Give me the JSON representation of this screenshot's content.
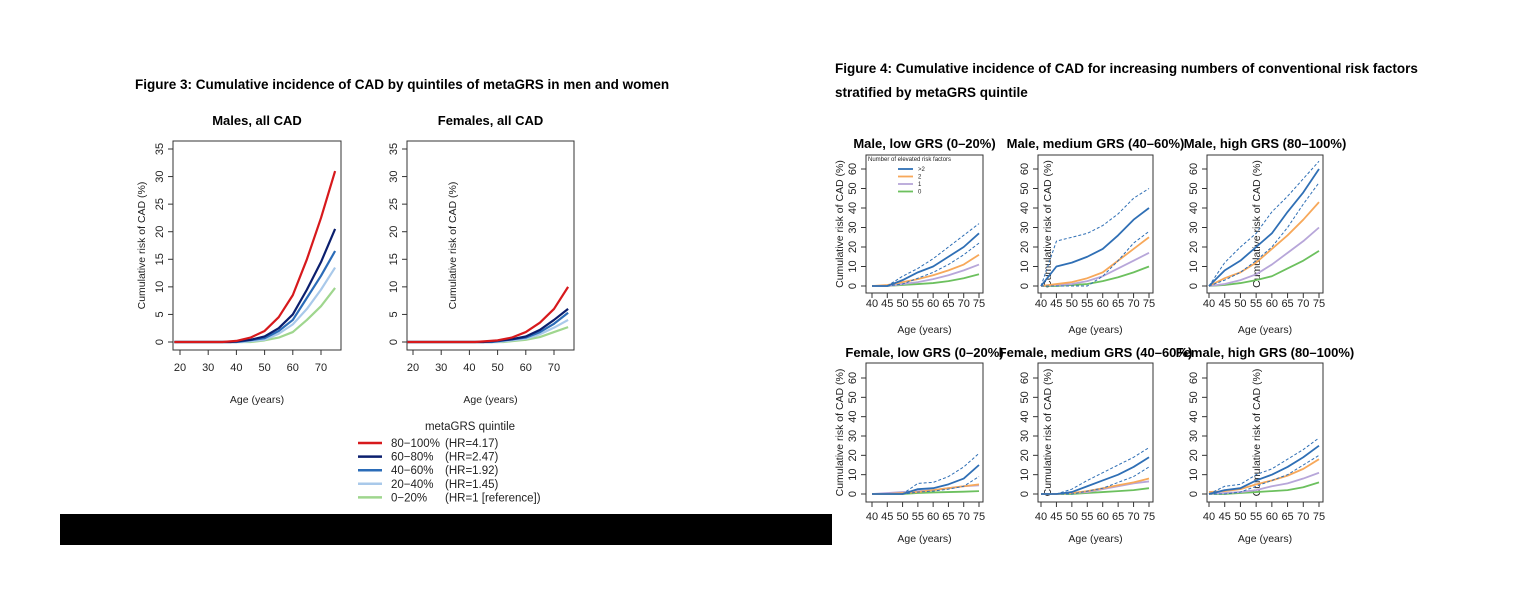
{
  "figure3": {
    "title": "Figure 3: Cumulative incidence of CAD by quintiles of metaGRS in men and women",
    "legend_title": "metaGRS quintile",
    "legend": [
      {
        "range": "80−100%",
        "hr": "(HR=4.17)",
        "color": "#d7191c"
      },
      {
        "range": "60−80%",
        "hr": "(HR=2.47)",
        "color": "#0b1f6e"
      },
      {
        "range": "40−60%",
        "hr": "(HR=1.92)",
        "color": "#2b6cb8"
      },
      {
        "range": "20−40%",
        "hr": "(HR=1.45)",
        "color": "#a9c9ea"
      },
      {
        "range": "0−20%",
        "hr": "(HR=1 [reference])",
        "color": "#9fd68e"
      }
    ]
  },
  "figure4": {
    "title_line1": "Figure 4: Cumulative incidence of CAD for increasing numbers of conventional risk factors",
    "title_line2": "stratified by metaGRS quintile",
    "legend_title": "Number of elevated risk factors",
    "legend": [
      {
        "label": ">2",
        "color": "#2f6fb5"
      },
      {
        "label": "2",
        "color": "#f7a85a"
      },
      {
        "label": "1",
        "color": "#b7a6d9"
      },
      {
        "label": "0",
        "color": "#6cc05e"
      }
    ]
  },
  "chart_data": [
    {
      "type": "line",
      "title": "Males, all CAD",
      "xlabel": "Age (years)",
      "ylabel": "Cumulative risk of CAD (%)",
      "xlim": [
        18,
        75
      ],
      "ylim": [
        0,
        35
      ],
      "xticks": [
        "20",
        "30",
        "40",
        "50",
        "60",
        "70"
      ],
      "yticks": [
        "0",
        "5",
        "10",
        "15",
        "20",
        "25",
        "30",
        "35"
      ],
      "series": [
        {
          "name": "80−100%",
          "x": [
            18,
            35,
            40,
            45,
            50,
            55,
            60,
            65,
            70,
            75
          ],
          "y": [
            0,
            0,
            0.2,
            0.8,
            2,
            4.5,
            8.5,
            15,
            22.5,
            31
          ]
        },
        {
          "name": "60−80%",
          "x": [
            18,
            38,
            45,
            50,
            55,
            60,
            65,
            70,
            75
          ],
          "y": [
            0,
            0,
            0.4,
            1,
            2.5,
            5,
            9.5,
            14.5,
            20.5
          ]
        },
        {
          "name": "40−60%",
          "x": [
            18,
            40,
            50,
            55,
            60,
            65,
            70,
            75
          ],
          "y": [
            0,
            0,
            0.7,
            2,
            4,
            8,
            12,
            16.5
          ]
        },
        {
          "name": "20−40%",
          "x": [
            18,
            42,
            50,
            55,
            60,
            65,
            70,
            75
          ],
          "y": [
            0,
            0,
            0.4,
            1.5,
            3.2,
            6,
            9.5,
            13.5
          ]
        },
        {
          "name": "0−20%",
          "x": [
            18,
            45,
            50,
            55,
            60,
            65,
            70,
            75
          ],
          "y": [
            0,
            0,
            0.3,
            0.8,
            1.8,
            4,
            6.5,
            9.8
          ]
        }
      ]
    },
    {
      "type": "line",
      "title": "Females, all CAD",
      "xlabel": "Age (years)",
      "ylabel": "Cumulative risk of CAD (%)",
      "xlim": [
        18,
        75
      ],
      "ylim": [
        0,
        35
      ],
      "xticks": [
        "20",
        "30",
        "40",
        "50",
        "60",
        "70"
      ],
      "yticks": [
        "0",
        "5",
        "10",
        "15",
        "20",
        "25",
        "30",
        "35"
      ],
      "series": [
        {
          "name": "80−100%",
          "x": [
            18,
            42,
            50,
            55,
            60,
            65,
            70,
            75
          ],
          "y": [
            0,
            0,
            0.3,
            0.8,
            1.8,
            3.5,
            6,
            10
          ]
        },
        {
          "name": "60−80%",
          "x": [
            18,
            45,
            55,
            60,
            65,
            70,
            75
          ],
          "y": [
            0,
            0,
            0.5,
            1,
            2.2,
            4,
            6
          ]
        },
        {
          "name": "40−60%",
          "x": [
            18,
            48,
            60,
            65,
            70,
            75
          ],
          "y": [
            0,
            0,
            0.8,
            1.8,
            3.3,
            5.3
          ]
        },
        {
          "name": "20−40%",
          "x": [
            18,
            50,
            60,
            65,
            70,
            75
          ],
          "y": [
            0,
            0,
            0.6,
            1.4,
            2.6,
            4
          ]
        },
        {
          "name": "0−20%",
          "x": [
            18,
            52,
            60,
            65,
            70,
            75
          ],
          "y": [
            0,
            0,
            0.4,
            0.9,
            1.8,
            2.7
          ]
        }
      ]
    },
    {
      "type": "line",
      "title": "Male, low GRS (0–20%)",
      "xlabel": "Age (years)",
      "ylabel": "Cumulative risk of CAD (%)",
      "xlim": [
        40,
        75
      ],
      "ylim": [
        0,
        60
      ],
      "x": [
        40,
        45,
        50,
        55,
        60,
        65,
        70,
        75
      ],
      "xticks": [
        "40",
        "45",
        "50",
        "55",
        "60",
        "65",
        "70",
        "75"
      ],
      "yticks": [
        "0",
        "10",
        "20",
        "30",
        "40",
        "50",
        "60"
      ],
      "series": [
        {
          "name": ">2",
          "y": [
            0,
            0,
            3,
            7,
            10,
            15,
            20,
            27
          ],
          "ci_lower": [
            0,
            0,
            1,
            4,
            7,
            11,
            16,
            22
          ],
          "ci_upper": [
            0,
            0,
            5,
            9,
            14,
            20,
            26,
            32
          ]
        },
        {
          "name": "2",
          "y": [
            0,
            0.5,
            2,
            3.5,
            5.5,
            8,
            11,
            16
          ]
        },
        {
          "name": "1",
          "y": [
            0,
            0,
            1,
            2,
            3.5,
            5.5,
            8,
            11
          ]
        },
        {
          "name": "0",
          "y": [
            0,
            0,
            0.5,
            1,
            1.5,
            2.5,
            4,
            6
          ]
        }
      ]
    },
    {
      "type": "line",
      "title": "Male, medium GRS (40–60%)",
      "xlabel": "Age (years)",
      "ylabel": "Cumulative risk of CAD (%)",
      "xlim": [
        40,
        75
      ],
      "ylim": [
        0,
        60
      ],
      "x": [
        40,
        45,
        50,
        55,
        60,
        65,
        70,
        75
      ],
      "xticks": [
        "40",
        "45",
        "50",
        "55",
        "60",
        "65",
        "70",
        "75"
      ],
      "yticks": [
        "0",
        "10",
        "20",
        "30",
        "40",
        "50",
        "60"
      ],
      "series": [
        {
          "name": ">2",
          "y": [
            0,
            10,
            12,
            15,
            19,
            26,
            34,
            40
          ],
          "ci_lower": [
            0,
            0,
            0,
            0,
            5,
            13,
            22,
            28
          ],
          "ci_upper": [
            0,
            23,
            25,
            27,
            31,
            37,
            45,
            50
          ]
        },
        {
          "name": "2",
          "y": [
            0,
            1,
            2,
            4,
            7,
            13,
            19,
            25
          ]
        },
        {
          "name": "1",
          "y": [
            0,
            0.5,
            1,
            2.5,
            5,
            9,
            13,
            17
          ]
        },
        {
          "name": "0",
          "y": [
            0,
            0,
            0.5,
            1,
            2.5,
            4.5,
            7,
            10
          ]
        }
      ]
    },
    {
      "type": "line",
      "title": "Male, high GRS (80–100%)",
      "xlabel": "Age (years)",
      "ylabel": "Cumulative risk of CAD (%)",
      "xlim": [
        40,
        75
      ],
      "ylim": [
        0,
        60
      ],
      "x": [
        40,
        45,
        50,
        55,
        60,
        65,
        70,
        75
      ],
      "xticks": [
        "40",
        "45",
        "50",
        "55",
        "60",
        "65",
        "70",
        "75"
      ],
      "yticks": [
        "0",
        "10",
        "20",
        "30",
        "40",
        "50",
        "60"
      ],
      "series": [
        {
          "name": ">2",
          "y": [
            0,
            8,
            13,
            20,
            27,
            38,
            48,
            60
          ],
          "ci_lower": [
            0,
            3,
            7,
            13,
            20,
            30,
            42,
            53
          ],
          "ci_upper": [
            0,
            12,
            20,
            27,
            38,
            46,
            55,
            64
          ]
        },
        {
          "name": "2",
          "y": [
            0,
            4,
            7,
            12,
            19,
            26,
            34,
            43
          ]
        },
        {
          "name": "1",
          "y": [
            0,
            1,
            3,
            6,
            11,
            17,
            23,
            30
          ]
        },
        {
          "name": "0",
          "y": [
            0,
            0.5,
            1.5,
            3,
            5,
            9,
            13,
            18
          ]
        }
      ]
    },
    {
      "type": "line",
      "title": "Female, low GRS (0–20%)",
      "xlabel": "Age (years)",
      "ylabel": "Cumulative risk of CAD (%)",
      "xlim": [
        40,
        75
      ],
      "ylim": [
        0,
        60
      ],
      "x": [
        40,
        45,
        50,
        55,
        60,
        65,
        70,
        75
      ],
      "xticks": [
        "40",
        "45",
        "50",
        "55",
        "60",
        "65",
        "70",
        "75"
      ],
      "yticks": [
        "0",
        "10",
        "20",
        "30",
        "40",
        "50",
        "60"
      ],
      "series": [
        {
          "name": ">2",
          "y": [
            0,
            0,
            0,
            2.5,
            3,
            5,
            8,
            15
          ],
          "ci_lower": [
            0,
            0,
            0,
            1,
            1.5,
            2.5,
            4,
            9
          ],
          "ci_upper": [
            0,
            0,
            0,
            5.5,
            6,
            9,
            14,
            21
          ]
        },
        {
          "name": "2",
          "y": [
            0,
            0,
            0.5,
            1,
            2,
            3,
            4,
            5
          ]
        },
        {
          "name": "1",
          "y": [
            0,
            0.5,
            1,
            1.5,
            2,
            3,
            4,
            4.5
          ]
        },
        {
          "name": "0",
          "y": [
            0,
            0,
            0,
            0.5,
            0.8,
            1,
            1.2,
            1.5
          ]
        }
      ]
    },
    {
      "type": "line",
      "title": "Female, medium GRS (40–60%)",
      "xlabel": "Age (years)",
      "ylabel": "Cumulative risk of CAD (%)",
      "xlim": [
        40,
        75
      ],
      "ylim": [
        0,
        60
      ],
      "x": [
        40,
        45,
        50,
        55,
        60,
        65,
        70,
        75
      ],
      "xticks": [
        "40",
        "45",
        "50",
        "55",
        "60",
        "65",
        "70",
        "75"
      ],
      "yticks": [
        "0",
        "10",
        "20",
        "30",
        "40",
        "50",
        "60"
      ],
      "series": [
        {
          "name": ">2",
          "y": [
            0,
            0,
            1,
            4,
            7,
            10,
            14,
            19
          ],
          "ci_lower": [
            0,
            0,
            0,
            1.5,
            3,
            6,
            9,
            14
          ],
          "ci_upper": [
            0,
            0,
            2.5,
            7,
            11,
            15,
            19,
            24
          ]
        },
        {
          "name": "2",
          "y": [
            0,
            0,
            0.5,
            1.5,
            3,
            4.5,
            6,
            8
          ]
        },
        {
          "name": "1",
          "y": [
            0,
            0,
            0.5,
            1,
            2.5,
            4,
            5.5,
            6.5
          ]
        },
        {
          "name": "0",
          "y": [
            0,
            0,
            0,
            0.5,
            1,
            1.5,
            2,
            3
          ]
        }
      ]
    },
    {
      "type": "line",
      "title": "Female, high GRS (80–100%)",
      "xlabel": "Age (years)",
      "ylabel": "Cumulative risk of CAD (%)",
      "xlim": [
        40,
        75
      ],
      "ylim": [
        0,
        60
      ],
      "x": [
        40,
        45,
        50,
        55,
        60,
        65,
        70,
        75
      ],
      "xticks": [
        "40",
        "45",
        "50",
        "55",
        "60",
        "65",
        "70",
        "75"
      ],
      "yticks": [
        "0",
        "10",
        "20",
        "30",
        "40",
        "50",
        "60"
      ],
      "series": [
        {
          "name": ">2",
          "y": [
            0,
            2,
            3,
            7,
            10,
            14,
            19,
            25
          ],
          "ci_lower": [
            0,
            0,
            1,
            4,
            7,
            10,
            15,
            20
          ],
          "ci_upper": [
            0,
            4,
            5,
            10,
            13,
            18,
            23,
            29
          ]
        },
        {
          "name": "2",
          "y": [
            1,
            1.5,
            2.5,
            5,
            7,
            9.5,
            13,
            18
          ]
        },
        {
          "name": "1",
          "y": [
            0,
            0.5,
            1,
            2,
            4,
            5.5,
            8,
            11
          ]
        },
        {
          "name": "0",
          "y": [
            0,
            0,
            0.5,
            1,
            1.5,
            2,
            3.5,
            6
          ]
        }
      ]
    }
  ]
}
